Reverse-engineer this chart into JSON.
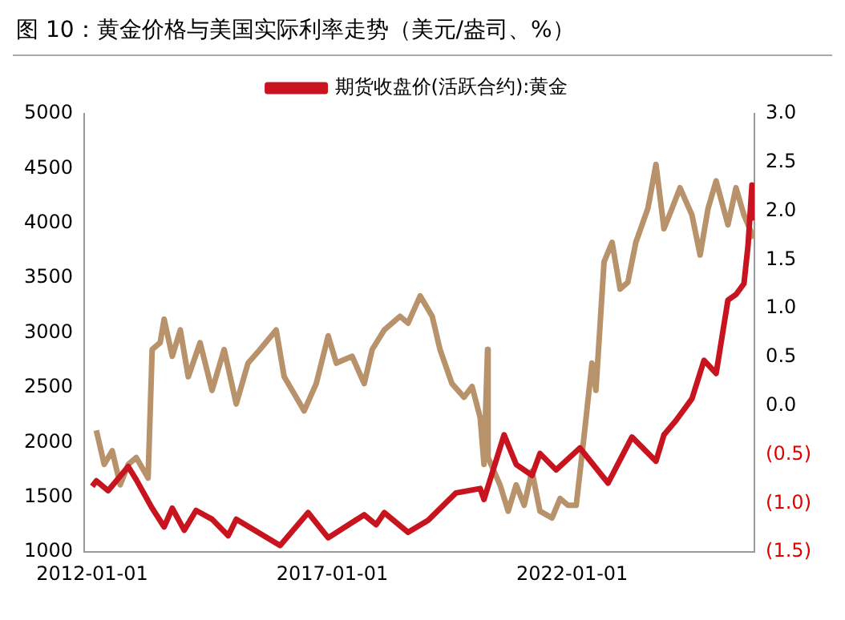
{
  "chart_data": {
    "type": "line",
    "title": "图 10：黄金价格与美国实际利率走势（美元/盎司、%）",
    "xlim": [
      "2011-11-01",
      "2025-10-20"
    ],
    "xticks": [
      "2012-01-01",
      "2017-01-01",
      "2022-01-01"
    ],
    "ylim": [
      1000,
      5000
    ],
    "yticks": [
      1000,
      1500,
      2000,
      2500,
      3000,
      3500,
      4000,
      4500,
      5000
    ],
    "y2lim": [
      -1.5,
      3.0
    ],
    "y2ticks": [
      {
        "value": -1.5,
        "label": "(1.5)"
      },
      {
        "value": -1.0,
        "label": "(1.0)"
      },
      {
        "value": -0.5,
        "label": "(0.5)"
      },
      {
        "value": 0,
        "label": "0.0"
      },
      {
        "value": 0.5,
        "label": "0.5"
      },
      {
        "value": 1.0,
        "label": "1.0"
      },
      {
        "value": 1.5,
        "label": "1.5"
      },
      {
        "value": 2.0,
        "label": "2.0"
      },
      {
        "value": 2.5,
        "label": "2.5"
      },
      {
        "value": 3.0,
        "label": "3.0"
      }
    ],
    "grid": false,
    "legend": "top",
    "marker": "none",
    "line_style": "solid",
    "series": [
      {
        "name": "期货收盘价(活跃合约):黄金",
        "color": "#c8141e",
        "x": [
          "2012-01",
          "2012-02",
          "2012-05",
          "2012-10",
          "2012-12",
          "2013-04",
          "2013-07",
          "2013-09",
          "2013-12",
          "2014-03",
          "2014-07",
          "2014-11",
          "2015-01",
          "2015-07",
          "2015-12",
          "2016-07",
          "2016-12",
          "2017-06",
          "2017-09",
          "2017-12",
          "2018-02",
          "2018-08",
          "2019-01",
          "2019-08",
          "2020-02",
          "2020-03",
          "2020-08",
          "2020-11",
          "2021-03",
          "2021-05",
          "2021-09",
          "2022-03",
          "2022-10",
          "2023-04",
          "2023-10",
          "2023-12",
          "2024-03",
          "2024-07",
          "2024-10",
          "2025-01",
          "2025-04",
          "2025-06",
          "2025-08",
          "2025-09",
          "2025-10-01",
          "2025-10-10",
          "2025-10-20"
        ],
        "values": [
          1600,
          1650,
          1560,
          1780,
          1660,
          1400,
          1230,
          1400,
          1200,
          1380,
          1300,
          1150,
          1300,
          1170,
          1060,
          1360,
          1130,
          1270,
          1340,
          1250,
          1360,
          1180,
          1290,
          1540,
          1580,
          1480,
          2070,
          1800,
          1700,
          1900,
          1750,
          1950,
          1630,
          2050,
          1830,
          2070,
          2200,
          2400,
          2750,
          2630,
          3300,
          3350,
          3450,
          3800,
          4350,
          4050,
          4300
        ]
      },
      {
        "color": "#b8926a",
        "axis": "y2",
        "x": [
          "2012-02",
          "2012-04",
          "2012-06",
          "2012-08",
          "2012-10",
          "2012-12",
          "2013-03",
          "2013-04",
          "2013-06",
          "2013-07",
          "2013-09",
          "2013-11",
          "2014-01",
          "2014-04",
          "2014-07",
          "2014-10",
          "2015-01",
          "2015-04",
          "2015-07",
          "2015-11",
          "2016-01",
          "2016-04",
          "2016-06",
          "2016-09",
          "2016-12",
          "2017-02",
          "2017-06",
          "2017-09",
          "2017-11",
          "2018-02",
          "2018-06",
          "2018-08",
          "2018-11",
          "2019-02",
          "2019-04",
          "2019-07",
          "2019-10",
          "2019-12",
          "2020-02",
          "2020-03",
          "2020-03-28",
          "2020-04",
          "2020-07",
          "2020-09",
          "2020-11",
          "2021-01",
          "2021-03",
          "2021-05",
          "2021-08",
          "2021-10",
          "2021-12",
          "2022-02",
          "2022-04",
          "2022-06",
          "2022-07",
          "2022-09",
          "2022-11",
          "2023-01",
          "2023-03",
          "2023-05",
          "2023-08",
          "2023-10",
          "2023-12",
          "2024-02",
          "2024-04",
          "2024-07",
          "2024-09",
          "2024-11",
          "2025-01",
          "2025-04",
          "2025-06",
          "2025-08",
          "2025-10-15"
        ],
        "values": [
          -0.25,
          -0.6,
          -0.46,
          -0.81,
          -0.6,
          -0.53,
          -0.74,
          0.58,
          0.65,
          0.89,
          0.51,
          0.78,
          0.3,
          0.65,
          0.16,
          0.58,
          0.02,
          0.44,
          0.58,
          0.78,
          0.3,
          0.09,
          -0.05,
          0.23,
          0.72,
          0.44,
          0.51,
          0.23,
          0.58,
          0.78,
          0.92,
          0.85,
          1.13,
          0.92,
          0.58,
          0.23,
          0.09,
          0.2,
          -0.12,
          -0.6,
          0.58,
          -0.53,
          -0.81,
          -1.08,
          -0.81,
          -1.02,
          -0.67,
          -1.08,
          -1.15,
          -0.95,
          -1.02,
          -1.02,
          -0.32,
          0.44,
          0.16,
          1.48,
          1.68,
          1.2,
          1.27,
          1.68,
          2.03,
          2.48,
          1.82,
          2.03,
          2.24,
          1.96,
          1.55,
          2.03,
          2.31,
          1.86,
          2.24,
          1.96,
          1.72
        ]
      }
    ]
  }
}
